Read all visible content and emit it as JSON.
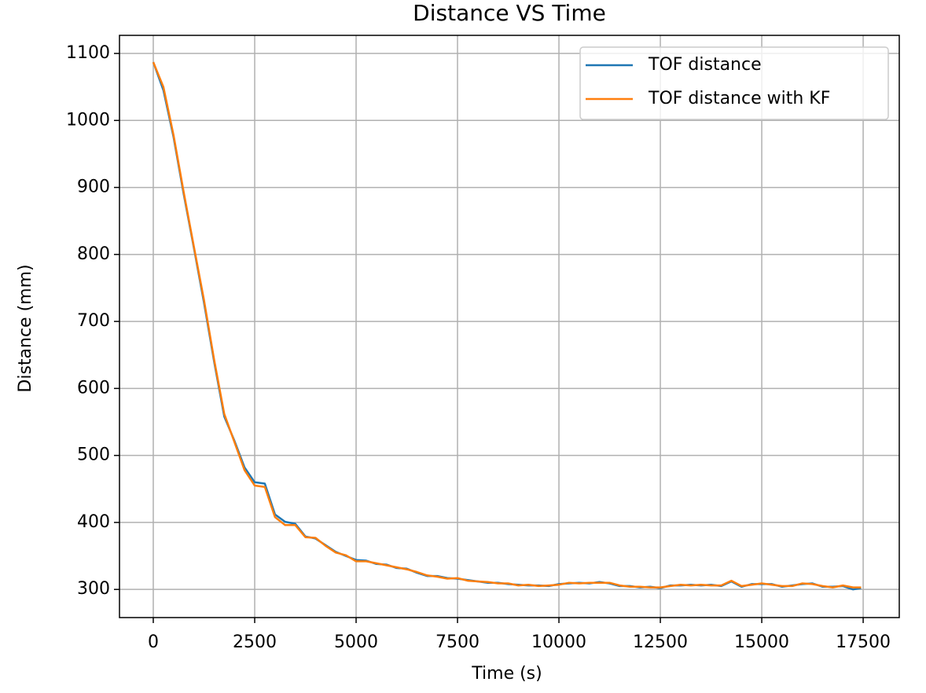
{
  "chart_data": {
    "type": "line",
    "title": "Distance VS Time",
    "x_label": "Time (s)",
    "y_label": "Distance (mm)",
    "x": [
      0,
      250,
      500,
      750,
      1000,
      1250,
      1500,
      1750,
      2000,
      2250,
      2500,
      2750,
      3000,
      3250,
      3500,
      3750,
      4000,
      4250,
      4500,
      4750,
      5000,
      5250,
      5500,
      5750,
      6000,
      6250,
      6500,
      6750,
      7000,
      7250,
      7500,
      7750,
      8000,
      8250,
      8500,
      8750,
      9000,
      9250,
      9500,
      9750,
      10000,
      10250,
      10500,
      10750,
      11000,
      11250,
      11500,
      11750,
      12000,
      12250,
      12500,
      12750,
      13000,
      13250,
      13500,
      13750,
      14000,
      14250,
      14500,
      14750,
      15000,
      15250,
      15500,
      15750,
      16000,
      16250,
      16500,
      16750,
      17000,
      17250,
      17450
    ],
    "series": [
      {
        "name": "TOF distance",
        "color": "#1f77b4",
        "values": [
          1087,
          1045,
          975,
          890,
          810,
          728,
          640,
          558,
          522,
          482,
          460,
          458,
          412,
          401,
          398,
          379,
          376,
          366,
          356,
          350,
          344,
          343,
          338,
          337,
          332,
          331,
          325,
          320,
          320,
          317,
          316,
          314,
          312,
          310,
          310,
          308,
          307,
          306,
          306,
          305,
          308,
          309,
          310,
          309,
          311,
          309,
          305,
          305,
          303,
          304,
          302,
          306,
          306,
          307,
          306,
          307,
          305,
          312,
          304,
          308,
          308,
          308,
          304,
          306,
          308,
          309,
          304,
          304,
          305,
          300,
          302
        ]
      },
      {
        "name": "TOF distance with KF",
        "color": "#ff7f0e",
        "values": [
          1087,
          1050,
          978,
          893,
          812,
          732,
          643,
          562,
          520,
          478,
          455,
          453,
          408,
          396,
          396,
          378,
          377,
          365,
          355,
          351,
          342,
          342,
          339,
          336,
          333,
          330,
          326,
          321,
          319,
          316,
          317,
          313,
          312,
          311,
          309,
          309,
          306,
          307,
          305,
          306,
          307,
          310,
          309,
          310,
          310,
          310,
          306,
          304,
          304,
          303,
          303,
          305,
          307,
          306,
          307,
          306,
          306,
          313,
          305,
          307,
          309,
          307,
          305,
          305,
          309,
          308,
          305,
          303,
          306,
          303,
          303
        ]
      }
    ],
    "xlim": [
      -833,
      18390
    ],
    "ylim": [
      258,
      1127
    ],
    "xticks": [
      0,
      2500,
      5000,
      7500,
      10000,
      12500,
      15000,
      17500
    ],
    "yticks": [
      300,
      400,
      500,
      600,
      700,
      800,
      900,
      1000,
      1100
    ],
    "grid": true,
    "legend": "upper right"
  }
}
